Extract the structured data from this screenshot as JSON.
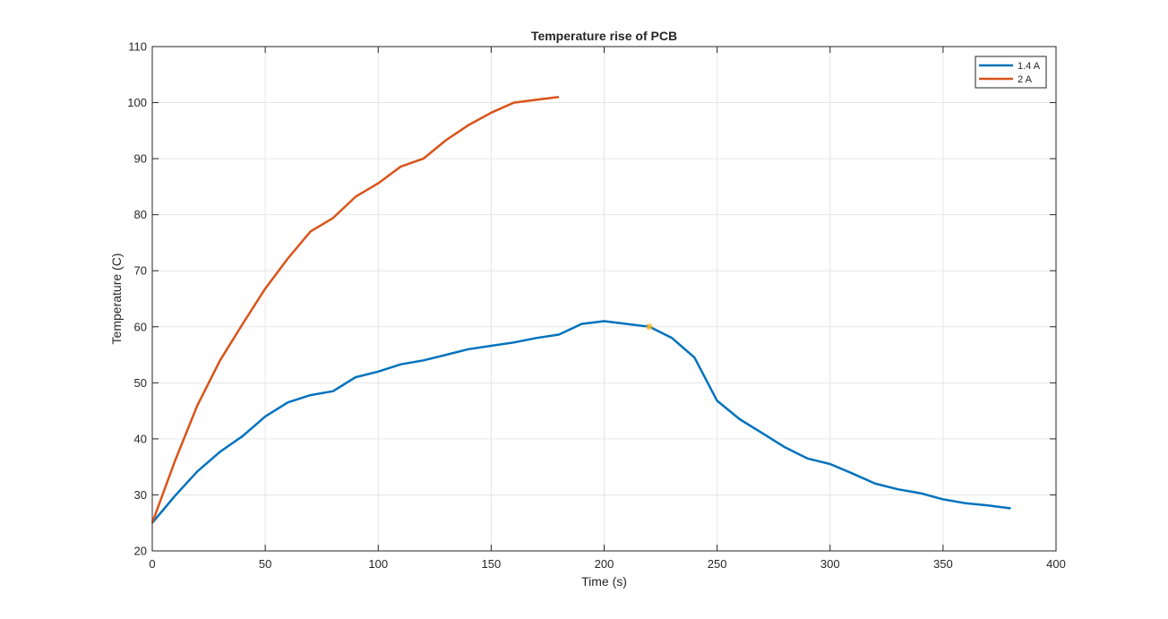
{
  "chart_data": {
    "type": "line",
    "title": "Temperature rise of PCB",
    "xlabel": "Time (s)",
    "ylabel": "Temperature (C)",
    "xlim": [
      0,
      400
    ],
    "ylim": [
      20,
      110
    ],
    "xticks": [
      0,
      50,
      100,
      150,
      200,
      250,
      300,
      350,
      400
    ],
    "yticks": [
      20,
      30,
      40,
      50,
      60,
      70,
      80,
      90,
      100,
      110
    ],
    "grid": true,
    "legend_position": "top-right",
    "series": [
      {
        "name": "1.4 A",
        "color": "#0072BD",
        "x": [
          0,
          10,
          20,
          30,
          40,
          50,
          60,
          70,
          80,
          90,
          100,
          110,
          120,
          130,
          140,
          150,
          160,
          170,
          180,
          190,
          200,
          210,
          220,
          230,
          240,
          250,
          260,
          270,
          280,
          290,
          300,
          310,
          320,
          330,
          340,
          350,
          360,
          370,
          380
        ],
        "y": [
          25,
          29.8,
          34.2,
          37.7,
          40.5,
          44,
          46.5,
          47.8,
          48.5,
          51,
          52,
          53.3,
          54,
          55,
          56,
          56.6,
          57.2,
          58,
          58.6,
          60.5,
          61,
          60.5,
          60,
          58,
          54.5,
          46.8,
          43.5,
          41,
          38.5,
          36.5,
          35.5,
          33.8,
          32,
          31,
          30.3,
          29.2,
          28.5,
          28.1,
          27.6
        ]
      },
      {
        "name": "2 A",
        "color": "#D95319",
        "x": [
          0,
          10,
          20,
          30,
          40,
          50,
          60,
          70,
          80,
          90,
          100,
          110,
          120,
          130,
          140,
          150,
          160,
          170,
          180
        ],
        "y": [
          25,
          36,
          46,
          54,
          60.5,
          66.8,
          72.2,
          77,
          79.4,
          83.2,
          85.6,
          88.6,
          90,
          93.3,
          96,
          98.2,
          100,
          100.5,
          101
        ]
      }
    ],
    "markers": [
      {
        "x": 220,
        "y": 60,
        "symbol": "*",
        "color": "#EDB120"
      }
    ]
  }
}
